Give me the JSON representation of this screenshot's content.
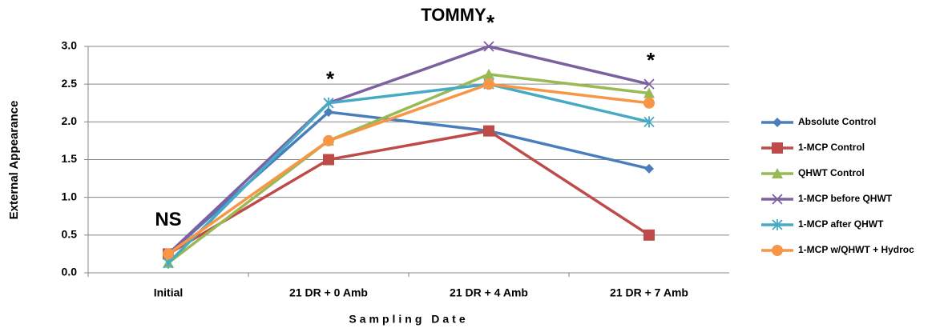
{
  "chart_data": {
    "type": "line",
    "title": "TOMMY",
    "x_label": "Sampling Date",
    "y_label": "External Appearance",
    "categories": [
      "Initial",
      "21 DR + 0 Amb",
      "21 DR + 4 Amb",
      "21 DR + 7 Amb"
    ],
    "category_annotations": [
      "NS",
      "*",
      "*",
      "*"
    ],
    "series": [
      {
        "name": "Absolute Control",
        "color": "#4a7ebb",
        "marker": "diamond",
        "values": [
          0.25,
          2.13,
          1.88,
          1.38
        ]
      },
      {
        "name": "1-MCP Control",
        "color": "#be4b48",
        "marker": "square",
        "values": [
          0.25,
          1.5,
          1.88,
          0.5
        ]
      },
      {
        "name": "QHWT Control",
        "color": "#98b954",
        "marker": "triangle",
        "values": [
          0.13,
          1.75,
          2.63,
          2.38
        ]
      },
      {
        "name": "1-MCP before QHWT",
        "color": "#7d60a0",
        "marker": "x",
        "values": [
          0.25,
          2.25,
          3.0,
          2.5
        ]
      },
      {
        "name": "1-MCP after QHWT",
        "color": "#46aac5",
        "marker": "star",
        "values": [
          0.13,
          2.25,
          2.5,
          2.0
        ]
      },
      {
        "name": "1-MCP w/QHWT + Hydroc",
        "color": "#f79646",
        "marker": "circle",
        "values": [
          0.25,
          1.75,
          2.5,
          2.25
        ]
      }
    ],
    "ylim": [
      0,
      3
    ],
    "yticks": [
      {
        "value": 0,
        "label": "0.0"
      },
      {
        "value": 0.5,
        "label": "0.5"
      },
      {
        "value": 1,
        "label": "1.0"
      },
      {
        "value": 1.5,
        "label": "1.5"
      },
      {
        "value": 2,
        "label": "2.0"
      },
      {
        "value": 2.5,
        "label": "2.5"
      },
      {
        "value": 3,
        "label": "3.0"
      }
    ],
    "grid": true,
    "legend": "right"
  }
}
